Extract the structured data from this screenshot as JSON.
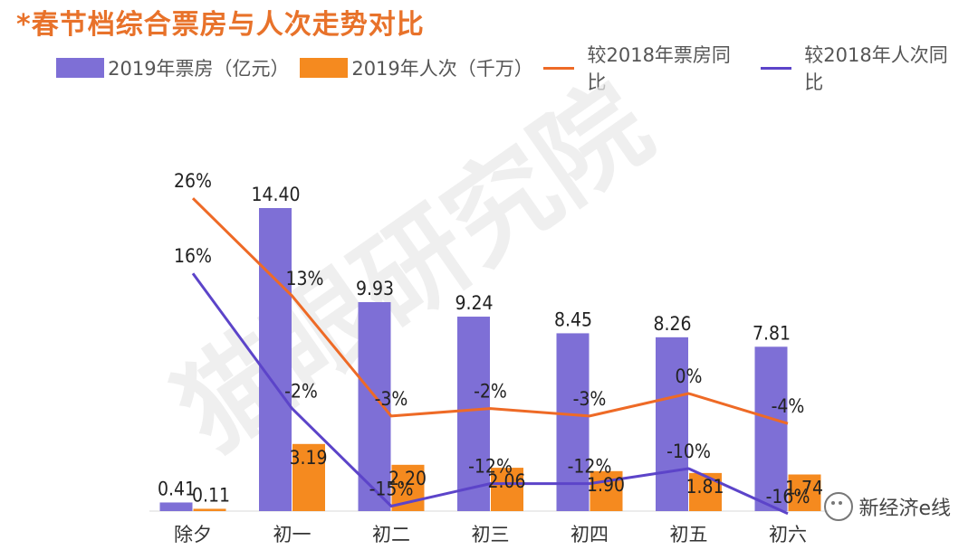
{
  "title": "*春节档综合票房与人次走势对比",
  "colors": {
    "bar_revenue": "#7e6fd6",
    "bar_audience": "#f58a1f",
    "line_revenue_yoy": "#ee6a26",
    "line_audience_yoy": "#5c44c9",
    "title": "#e8722a"
  },
  "legend": [
    {
      "label": "2019年票房（亿元）",
      "kind": "bar",
      "color": "#7e6fd6"
    },
    {
      "label": "2019年人次（千万）",
      "kind": "bar",
      "color": "#f58a1f"
    },
    {
      "label": "较2018年票房同比",
      "kind": "line",
      "color": "#ee6a26"
    },
    {
      "label": "较2018年人次同比",
      "kind": "line",
      "color": "#5c44c9"
    }
  ],
  "chart_data": {
    "type": "bar",
    "title": "*春节档综合票房与人次走势对比",
    "categories": [
      "除夕",
      "初一",
      "初二",
      "初三",
      "初四",
      "初五",
      "初六"
    ],
    "series": [
      {
        "name": "2019年票房（亿元）",
        "type": "bar",
        "values": [
          0.41,
          14.4,
          9.93,
          9.24,
          8.45,
          8.26,
          7.81
        ],
        "labels": [
          "0.41",
          "14.40",
          "9.93",
          "9.24",
          "8.45",
          "8.26",
          "7.81"
        ]
      },
      {
        "name": "2019年人次（千万）",
        "type": "bar",
        "values": [
          0.11,
          3.19,
          2.2,
          2.06,
          1.9,
          1.81,
          1.74
        ],
        "labels": [
          "0.11",
          "3.19",
          "2.20",
          "2.06",
          "1.90",
          "1.81",
          "1.74"
        ]
      },
      {
        "name": "较2018年票房同比",
        "type": "line",
        "values": [
          26,
          13,
          -3,
          -2,
          -3,
          0,
          -4
        ],
        "labels": [
          "26%",
          "13%",
          "-3%",
          "-2%",
          "-3%",
          "0%",
          "-4%"
        ]
      },
      {
        "name": "较2018年人次同比",
        "type": "line",
        "values": [
          16,
          -2,
          -15,
          -12,
          -12,
          -10,
          -16
        ],
        "labels": [
          "16%",
          "-2%",
          "-15%",
          "-12%",
          "-12%",
          "-10%",
          "-16%"
        ]
      }
    ],
    "bar_ylim": [
      0,
      16
    ],
    "line_ylim": [
      -25,
      35
    ],
    "xlabel": "",
    "ylabel": ""
  },
  "watermark": {
    "brand": "新经济e线"
  }
}
